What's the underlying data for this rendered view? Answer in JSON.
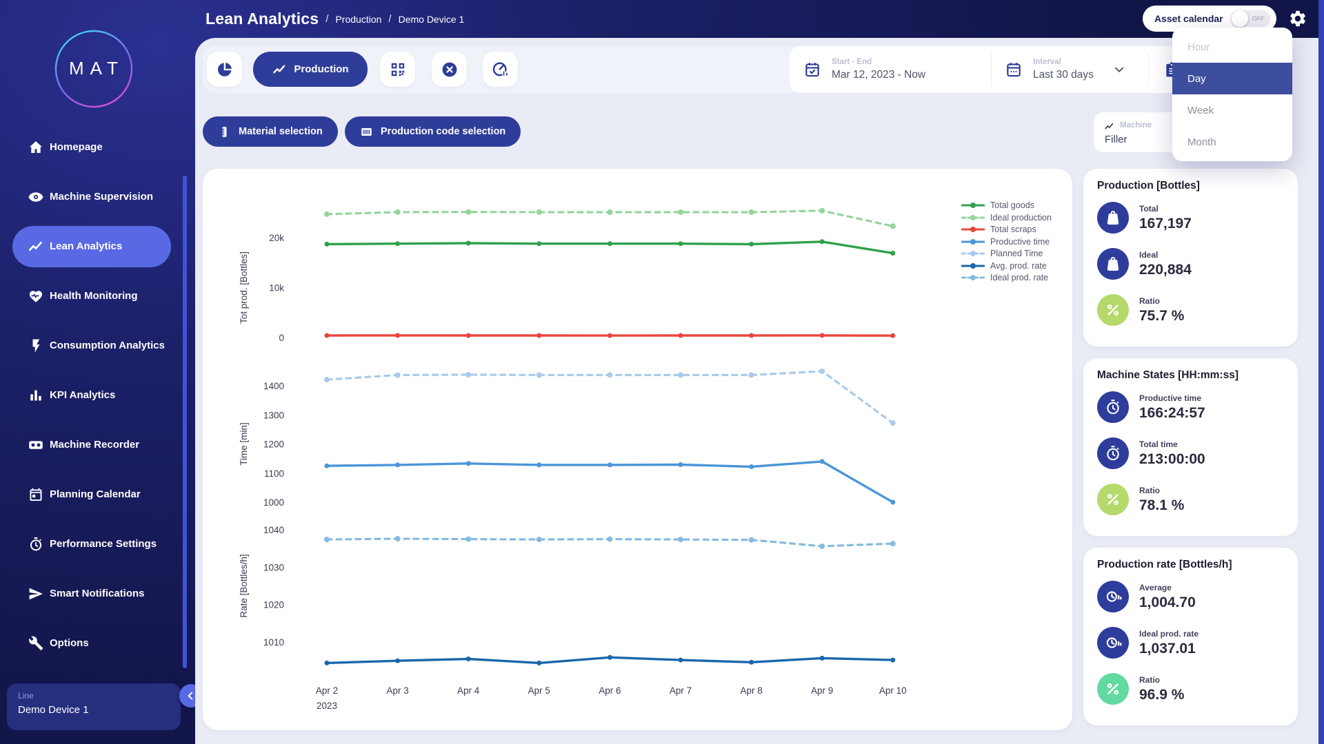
{
  "logo_text": "MAT",
  "header": {
    "title": "Lean Analytics",
    "separator": "/",
    "breadcrumbs": [
      "Production",
      "Demo Device 1"
    ],
    "asset_calendar_label": "Asset calendar",
    "asset_calendar_state": "OFF"
  },
  "sidebar": {
    "active_index": 2,
    "items": [
      {
        "label": "Homepage",
        "icon": "home-icon"
      },
      {
        "label": "Machine Supervision",
        "icon": "eye-icon"
      },
      {
        "label": "Lean Analytics",
        "icon": "trend-icon"
      },
      {
        "label": "Health Monitoring",
        "icon": "heart-icon"
      },
      {
        "label": "Consumption Analytics",
        "icon": "bolt-icon"
      },
      {
        "label": "KPI Analytics",
        "icon": "bar-chart-icon"
      },
      {
        "label": "Machine Recorder",
        "icon": "recorder-icon"
      },
      {
        "label": "Planning Calendar",
        "icon": "calendar-icon"
      },
      {
        "label": "Performance Settings",
        "icon": "stopwatch-icon"
      },
      {
        "label": "Smart Notifications",
        "icon": "send-icon"
      },
      {
        "label": "Options",
        "icon": "wrench-icon"
      }
    ],
    "line_panel": {
      "label": "Line",
      "value": "Demo Device 1"
    }
  },
  "toolbar": {
    "production_label": "Production",
    "material_button": "Material selection",
    "production_code_button": "Production code selection"
  },
  "filters": {
    "start_end_label": "Start - End",
    "start_end_value": "Mar 12, 2023 - Now",
    "interval_label": "Interval",
    "interval_value": "Last 30 days"
  },
  "machine_chip": {
    "label": "Machine",
    "value": "Filler"
  },
  "interval_dropdown": {
    "selected": "Day",
    "options": [
      {
        "label": "Hour",
        "state": "muted"
      },
      {
        "label": "Day",
        "state": "selected"
      },
      {
        "label": "Week",
        "state": "normal"
      },
      {
        "label": "Month",
        "state": "normal"
      }
    ]
  },
  "palette": {
    "primary_blue": "#2e3d99",
    "sidebar_active": "#5969e4",
    "selected_option": "#3e4e9f",
    "blue": "#2e3d9b",
    "lime": "#b5d96b",
    "mint": "#62d9a0"
  },
  "stats_panels": [
    {
      "title": "Production [Bottles]",
      "rows": [
        {
          "icon": "weight-icon",
          "color": "blue",
          "label": "Total",
          "value": "167,197"
        },
        {
          "icon": "weight-icon",
          "color": "blue",
          "label": "Ideal",
          "value": "220,884"
        },
        {
          "icon": "percent-icon",
          "color": "lime",
          "label": "Ratio",
          "value": "75.7 %"
        }
      ]
    },
    {
      "title": "Machine States [HH:mm:ss]",
      "rows": [
        {
          "icon": "stopwatch-icon",
          "color": "blue",
          "label": "Productive time",
          "value": "166:24:57"
        },
        {
          "icon": "stopwatch-icon",
          "color": "blue",
          "label": "Total time",
          "value": "213:00:00"
        },
        {
          "icon": "percent-icon",
          "color": "lime",
          "label": "Ratio",
          "value": "78.1 %"
        }
      ]
    },
    {
      "title": "Production rate [Bottles/h]",
      "rows": [
        {
          "icon": "rate-icon",
          "color": "blue",
          "label": "Average",
          "value": "1,004.70"
        },
        {
          "icon": "rate-icon",
          "color": "blue",
          "label": "Ideal prod. rate",
          "value": "1,037.01"
        },
        {
          "icon": "percent-icon",
          "color": "mint",
          "label": "Ratio",
          "value": "96.9 %"
        }
      ]
    }
  ],
  "chart_data": {
    "type": "line",
    "x": [
      "Apr 2",
      "Apr 3",
      "Apr 4",
      "Apr 5",
      "Apr 6",
      "Apr 7",
      "Apr 8",
      "Apr 9",
      "Apr 10"
    ],
    "x_year_label": "2023",
    "grid": false,
    "legend_position": "top-right",
    "subcharts": [
      {
        "ylabel": "Tot prod. [Bottles]",
        "ylim": [
          0,
          20000
        ],
        "yticks": [
          0,
          10000,
          20000
        ],
        "ytick_labels": [
          "0",
          "10k",
          "20k"
        ],
        "series": [
          {
            "name": "Ideal production",
            "color": "#94d59c",
            "dashed": true,
            "values": [
              24700,
              25100,
              25150,
              25100,
              25100,
              25100,
              25100,
              25400,
              22300
            ]
          },
          {
            "name": "Total goods",
            "color": "#2fa14c",
            "dashed": false,
            "values": [
              18700,
              18800,
              18900,
              18800,
              18800,
              18800,
              18700,
              19200,
              16900
            ]
          },
          {
            "name": "Total scraps",
            "color": "#e8473c",
            "dashed": false,
            "values": [
              420,
              430,
              420,
              410,
              400,
              410,
              420,
              430,
              390
            ]
          }
        ]
      },
      {
        "ylabel": "Time [min]",
        "ylim": [
          1000,
          1400
        ],
        "yticks": [
          1000,
          1100,
          1200,
          1300,
          1400
        ],
        "series": [
          {
            "name": "Planned Time",
            "color": "#a9cbea",
            "dashed": true,
            "values": [
              1421,
              1437,
              1438,
              1437,
              1437,
              1437,
              1437,
              1450,
              1272
            ]
          },
          {
            "name": "Productive time",
            "color": "#4b96d8",
            "dashed": false,
            "values": [
              1125,
              1128,
              1133,
              1128,
              1128,
              1129,
              1122,
              1140,
              1000
            ]
          }
        ]
      },
      {
        "ylabel": "Rate [Bottles/h]",
        "ylim": [
          1010,
          1040
        ],
        "yticks": [
          1010,
          1020,
          1030,
          1040
        ],
        "series": [
          {
            "name": "Ideal prod. rate",
            "color": "#86bbde",
            "dashed": true,
            "values": [
              1037.4,
              1037.6,
              1037.5,
              1037.4,
              1037.5,
              1037.4,
              1037.3,
              1035.6,
              1036.3
            ]
          },
          {
            "name": "Avg. prod. rate",
            "color": "#1a67ab",
            "dashed": false,
            "values": [
              1004.4,
              1005.0,
              1005.5,
              1004.4,
              1005.9,
              1005.2,
              1004.6,
              1005.7,
              1005.2
            ]
          }
        ]
      }
    ],
    "legend": [
      {
        "name": "Total goods",
        "color": "#2fa14c",
        "dashed": false
      },
      {
        "name": "Ideal production",
        "color": "#94d59c",
        "dashed": true
      },
      {
        "name": "Total scraps",
        "color": "#e8473c",
        "dashed": false
      },
      {
        "name": "Productive time",
        "color": "#4b96d8",
        "dashed": false
      },
      {
        "name": "Planned Time",
        "color": "#a9cbea",
        "dashed": true
      },
      {
        "name": "Avg. prod. rate",
        "color": "#1a67ab",
        "dashed": false
      },
      {
        "name": "Ideal prod. rate",
        "color": "#86bbde",
        "dashed": true
      }
    ]
  }
}
